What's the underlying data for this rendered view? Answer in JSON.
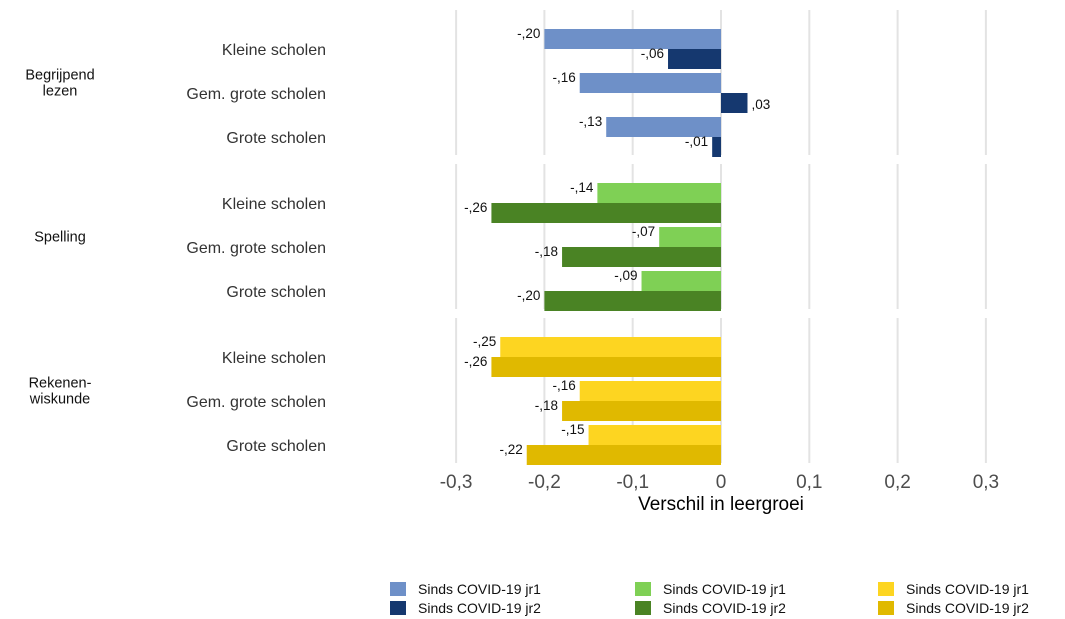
{
  "chart_data": {
    "type": "bar",
    "orientation": "horizontal",
    "xlabel": "Verschil in leergroei",
    "xlim": [
      -0.3,
      0.3
    ],
    "xticks": [
      -0.3,
      -0.2,
      -0.1,
      0,
      0.1,
      0.2,
      0.3
    ],
    "xtick_labels": [
      "-0,3",
      "-0,2",
      "-0,1",
      "0",
      "0,1",
      "0,2",
      "0,3"
    ],
    "grid": "vertical",
    "legend_position": "bottom",
    "categories": [
      "Kleine scholen",
      "Gem. grote scholen",
      "Grote scholen"
    ],
    "groups": [
      {
        "label": "Begrijpend lezen",
        "label_lines": [
          "Begrijpend",
          "lezen"
        ],
        "series": [
          {
            "name": "Sinds COVID-19 jr1",
            "color": "#6e90c8",
            "values": [
              -0.2,
              -0.16,
              -0.13
            ],
            "labels": [
              "-,20",
              "-,16",
              "-,13"
            ]
          },
          {
            "name": "Sinds COVID-19 jr2",
            "color": "#15386f",
            "values": [
              -0.06,
              0.03,
              -0.01
            ],
            "labels": [
              "-,06",
              ",03",
              "-,01"
            ]
          }
        ]
      },
      {
        "label": "Spelling",
        "label_lines": [
          "Spelling"
        ],
        "series": [
          {
            "name": "Sinds COVID-19 jr1",
            "color": "#7fd055",
            "values": [
              -0.14,
              -0.07,
              -0.09
            ],
            "labels": [
              "-,14",
              "-,07",
              "-,09"
            ]
          },
          {
            "name": "Sinds COVID-19 jr2",
            "color": "#4a8324",
            "values": [
              -0.26,
              -0.18,
              -0.2
            ],
            "labels": [
              "-,26",
              "-,18",
              "-,20"
            ]
          }
        ]
      },
      {
        "label": "Rekenen-wiskunde",
        "label_lines": [
          "Rekenen-",
          "wiskunde"
        ],
        "series": [
          {
            "name": "Sinds COVID-19 jr1",
            "color": "#fdd521",
            "values": [
              -0.25,
              -0.16,
              -0.15
            ],
            "labels": [
              "-,25",
              "-,16",
              "-,15"
            ]
          },
          {
            "name": "Sinds COVID-19 jr2",
            "color": "#e0b900",
            "values": [
              -0.26,
              -0.18,
              -0.22
            ],
            "labels": [
              "-,26",
              "-,18",
              "-,22"
            ]
          }
        ]
      }
    ]
  },
  "legend": {
    "items": [
      {
        "label": "Sinds COVID-19 jr1",
        "color": "#6e90c8"
      },
      {
        "label": "Sinds COVID-19 jr1",
        "color": "#7fd055"
      },
      {
        "label": "Sinds COVID-19 jr1",
        "color": "#fdd521"
      },
      {
        "label": "Sinds COVID-19 jr2",
        "color": "#15386f"
      },
      {
        "label": "Sinds COVID-19 jr2",
        "color": "#4a8324"
      },
      {
        "label": "Sinds COVID-19 jr2",
        "color": "#e0b900"
      }
    ]
  }
}
